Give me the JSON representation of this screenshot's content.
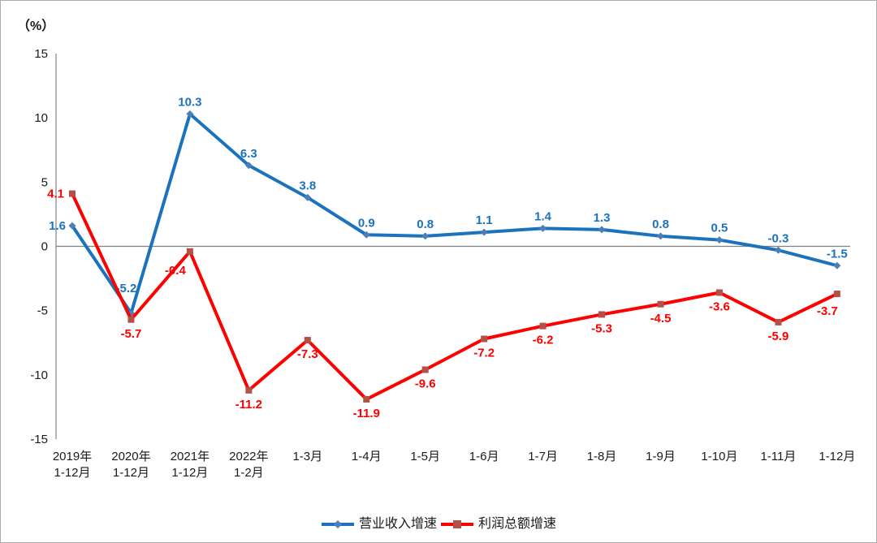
{
  "chart_data": {
    "type": "line",
    "title": "",
    "ylabel": "（%）",
    "xlabel": "",
    "ylim": [
      -15,
      15
    ],
    "yticks": [
      15,
      10,
      5,
      0,
      -5,
      -10,
      -15
    ],
    "grid": false,
    "legend_position": "bottom",
    "zero_line": true,
    "categories": [
      "2019年\n1-12月",
      "2020年\n1-12月",
      "2021年\n1-12月",
      "2022年\n1-2月",
      "1-3月",
      "1-4月",
      "1-5月",
      "1-6月",
      "1-7月",
      "1-8月",
      "1-9月",
      "1-10月",
      "1-11月",
      "1-12月"
    ],
    "series": [
      {
        "name": "营业收入增速",
        "color": "#1b73be",
        "marker": "diamond",
        "marker_color": "#4e7fb4",
        "values": [
          1.6,
          -5.2,
          10.3,
          6.3,
          3.8,
          0.9,
          0.8,
          1.1,
          1.4,
          1.3,
          0.8,
          0.5,
          -0.3,
          -1.5
        ]
      },
      {
        "name": "利润总额增速",
        "color": "#ff0000",
        "marker": "square",
        "marker_color": "#b35048",
        "values": [
          4.1,
          -5.7,
          -0.4,
          -11.2,
          -7.3,
          -11.9,
          -9.6,
          -7.2,
          -6.2,
          -5.3,
          -4.5,
          -3.6,
          -5.9,
          -3.7
        ]
      }
    ],
    "axis_color": "#8c8c8c",
    "zero_line_color": "#808080",
    "tick_label_color": "#1a1a1a"
  }
}
